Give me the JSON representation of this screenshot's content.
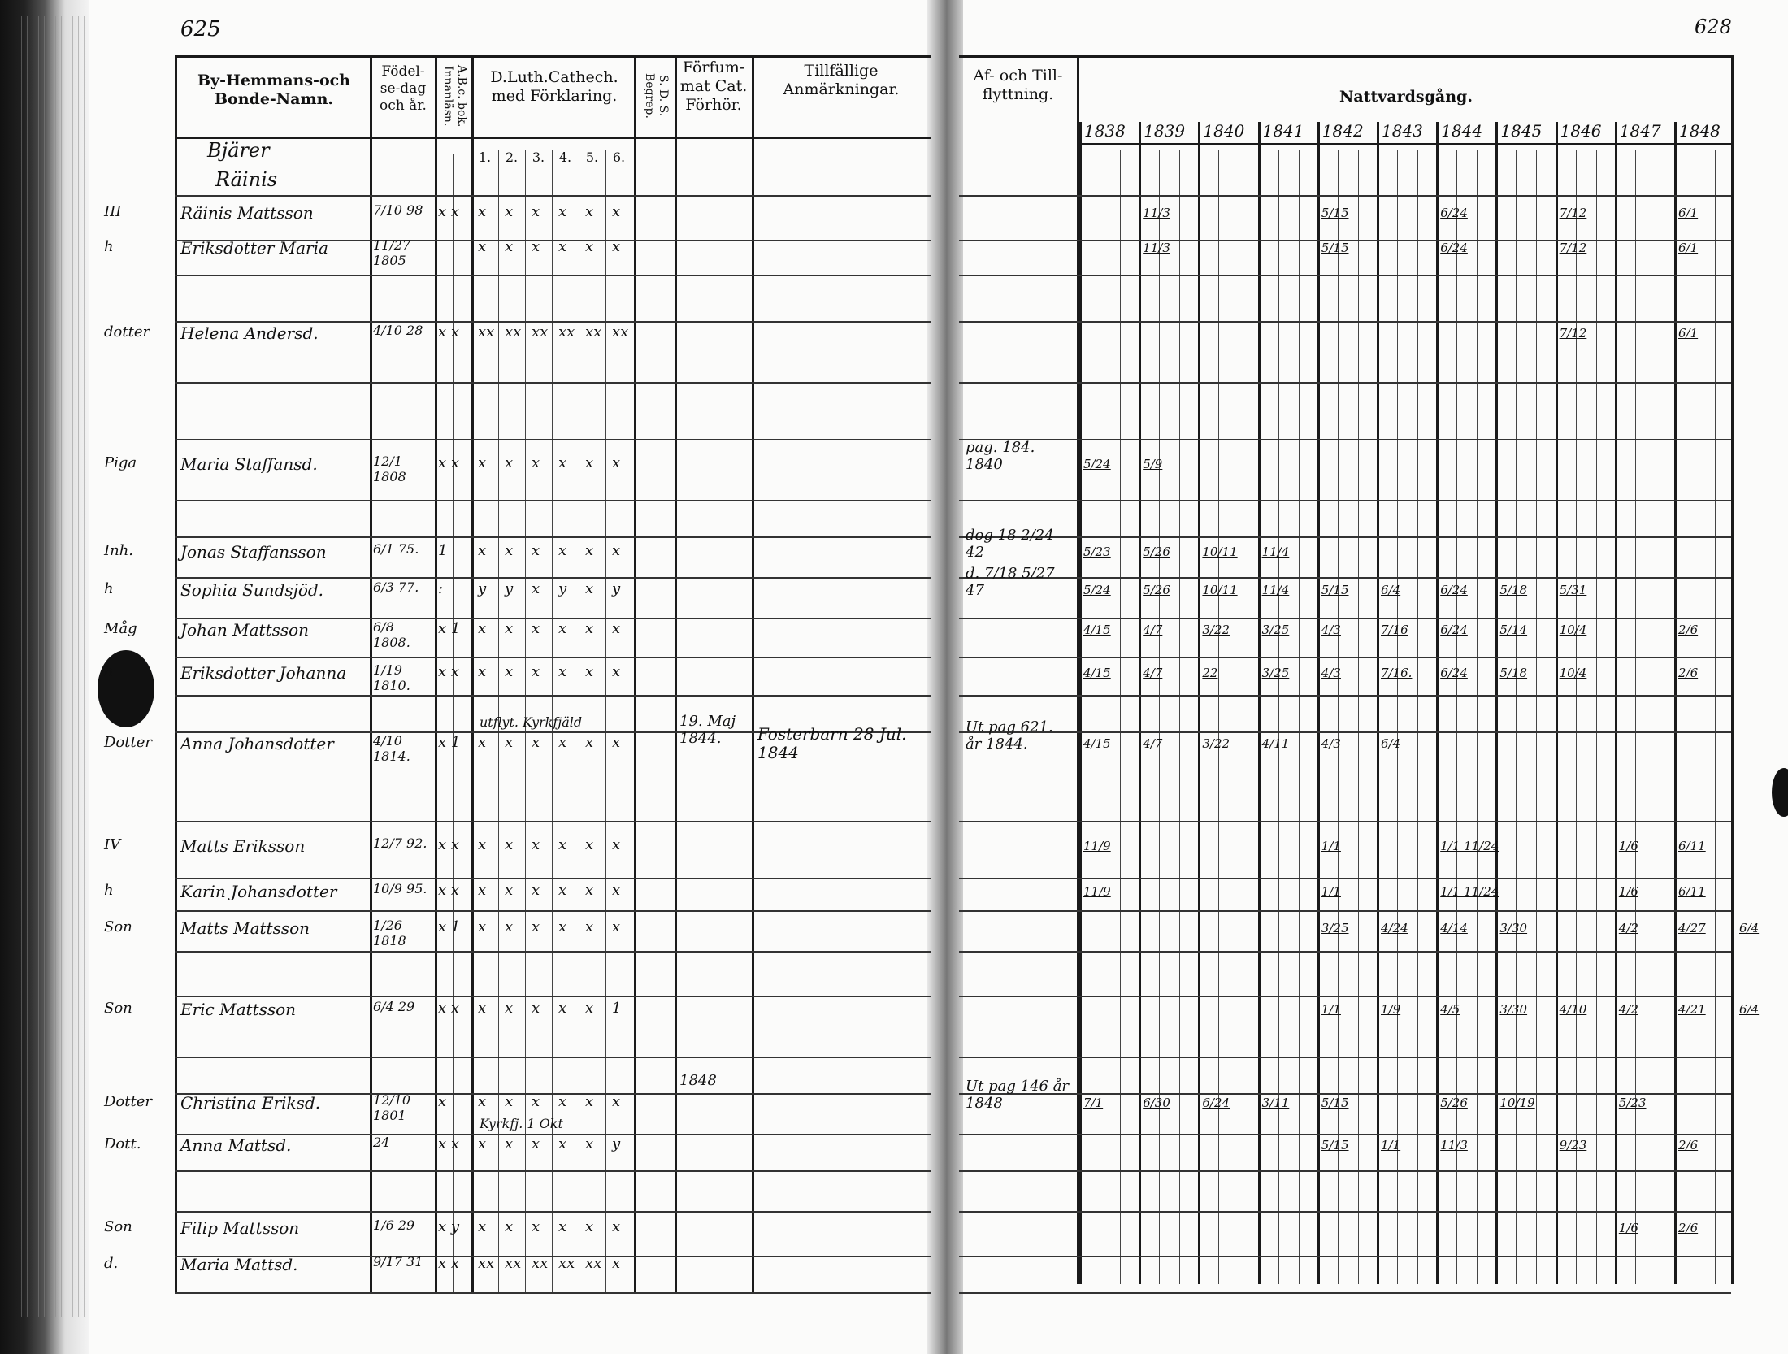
{
  "page_numbers": {
    "left": "625",
    "right": "628"
  },
  "headers": {
    "name": "By-Hemmans-och Bonde-Namn.",
    "birth": "Födel-se-dag och år.",
    "abc": "A.B.c. bok. Innanläsn.",
    "catechism": "D.Luth.Cathech. med Förklaring.",
    "catechism_parts": [
      "1.",
      "2.",
      "3.",
      "4.",
      "5.",
      "6."
    ],
    "sds": "S. D. S. Begrep.",
    "neglected": "Förfum-mat Cat. Förhör.",
    "remarks": "Tillfällige Anmärkningar.",
    "moving": "Af- och Till-flyttning.",
    "communion": "Nattvardsgång."
  },
  "years": [
    "1838",
    "1839",
    "1840",
    "1841",
    "1842",
    "1843",
    "1844",
    "1845",
    "1846",
    "1847",
    "1848"
  ],
  "village": [
    "Bjärer",
    "Räinis"
  ],
  "rows": [
    {
      "mark": "III",
      "name": "Räinis Mattsson",
      "birth": "7/10 98",
      "abc": "x x",
      "cat": [
        "x",
        "x",
        "x",
        "x",
        "x",
        "x"
      ],
      "communion": {
        "1839": "11/3",
        "1842": "5/15",
        "1844": "6/24",
        "1846": "7/12",
        "1848": "6/1"
      }
    },
    {
      "mark": "h",
      "name": "Eriksdotter Maria",
      "birth": "11/27 1805",
      "abc": "",
      "cat": [
        "x",
        "x",
        "x",
        "x",
        "x",
        "x"
      ],
      "communion": {
        "1839": "11/3",
        "1842": "5/15",
        "1844": "6/24",
        "1846": "7/12",
        "1848": "6/1"
      }
    },
    {
      "mark": "dotter",
      "name": "Helena Andersd.",
      "birth": "4/10 28",
      "abc": "x x",
      "cat": [
        "xx",
        "xx",
        "xx",
        "xx",
        "xx",
        "xx"
      ],
      "communion": {
        "1846": "7/12",
        "1848": "6/1"
      }
    },
    {
      "mark": "Piga",
      "name": "Maria Staffansd.",
      "birth": "12/1 1808",
      "abc": "x x",
      "cat": [
        "x",
        "x",
        "x",
        "x",
        "x",
        "x"
      ],
      "move": "pag. 184. 1840",
      "communion": {
        "1838": "5/24",
        "1839": "5/9"
      }
    },
    {
      "mark": "Inh.",
      "name": "Jonas Staffansson",
      "birth": "6/1 75.",
      "abc": "1",
      "cat": [
        "x",
        "x",
        "x",
        "x",
        "x",
        "x"
      ],
      "move": "dog 18 2/24 42",
      "communion": {
        "1838": "5/23",
        "1839": "5/26",
        "1840": "10/11",
        "1841": "11/4"
      }
    },
    {
      "mark": "h",
      "name": "Sophia Sundsjöd.",
      "birth": "6/3 77.",
      "abc": ":",
      "cat": [
        "y",
        "y",
        "x",
        "y",
        "x",
        "y"
      ],
      "move": "d. 7/18 5/27 47",
      "communion": {
        "1838": "5/24",
        "1839": "5/26",
        "1840": "10/11",
        "1841": "11/4",
        "1842": "5/15",
        "1843": "6/4",
        "1844": "6/24",
        "1845": "5/18",
        "1846": "5/31"
      }
    },
    {
      "mark": "Måg",
      "name": "Johan Mattsson",
      "birth": "6/8 1808.",
      "abc": "x 1",
      "cat": [
        "x",
        "x",
        "x",
        "x",
        "x",
        "x"
      ],
      "communion": {
        "1838": "4/15",
        "1839": "4/7",
        "1840": "3/22",
        "1841": "3/25",
        "1842": "4/3",
        "1843": "7/16",
        "1844": "6/24",
        "1845": "5/14",
        "1846": "10/4",
        "1848": "2/6"
      }
    },
    {
      "mark": "h",
      "name": "Eriksdotter Johanna",
      "birth": "1/19 1810.",
      "abc": "x x",
      "cat": [
        "x",
        "x",
        "x",
        "x",
        "x",
        "x"
      ],
      "communion": {
        "1838": "4/15",
        "1839": "4/7",
        "1840": "22",
        "1841": "3/25",
        "1842": "4/3",
        "1843": "7/16.",
        "1844": "6/24",
        "1845": "5/18",
        "1846": "10/4",
        "1848": "2/6"
      }
    },
    {
      "mark": "Dotter",
      "name": "Anna Johansdotter",
      "birth": "4/10 1814.",
      "abc": "x 1",
      "cat": [
        "x",
        "x",
        "x",
        "x",
        "x",
        "x"
      ],
      "cat_note": "utflyt. Kyrkfjäld",
      "neglected": "19. Maj 1844.",
      "remarks": "Fosterbarn 28 Jul. 1844",
      "move": "Ut pag 621. år 1844.",
      "communion": {
        "1838": "4/15",
        "1839": "4/7",
        "1840": "3/22",
        "1841": "4/11",
        "1842": "4/3",
        "1843": "6/4"
      }
    },
    {
      "mark": "IV",
      "name": "Matts Eriksson",
      "birth": "12/7 92.",
      "abc": "x x",
      "cat": [
        "x",
        "x",
        "x",
        "x",
        "x",
        "x"
      ],
      "communion": {
        "1838": "11/9",
        "1842": "1/1",
        "1844": "1/1 11/24",
        "1847": "1/6",
        "1848": "6/11"
      }
    },
    {
      "mark": "h",
      "name": "Karin Johansdotter",
      "birth": "10/9 95.",
      "abc": "x x",
      "cat": [
        "x",
        "x",
        "x",
        "x",
        "x",
        "x"
      ],
      "communion": {
        "1838": "11/9",
        "1842": "1/1",
        "1844": "1/1 11/24",
        "1847": "1/6",
        "1848": "6/11"
      }
    },
    {
      "mark": "Son",
      "name": "Matts Mattsson",
      "birth": "1/26 1818",
      "abc": "x 1",
      "cat": [
        "x",
        "x",
        "x",
        "x",
        "x",
        "x"
      ],
      "communion": {
        "1842": "3/25",
        "1843": "4/24",
        "1844": "4/14",
        "1845": "3/30",
        "1847": "4/2",
        "1848": "4/27",
        "extra": "6/4"
      }
    },
    {
      "mark": "Son",
      "name": "Eric Mattsson",
      "birth": "6/4 29",
      "abc": "x x",
      "cat": [
        "x",
        "x",
        "x",
        "x",
        "x",
        "1"
      ],
      "communion": {
        "1842": "1/1",
        "1843": "1/9",
        "1844": "4/5",
        "1845": "3/30",
        "1846": "4/10",
        "1847": "4/2",
        "1848": "4/21",
        "extra": "6/4"
      }
    },
    {
      "mark": "Dotter",
      "name": "Christina Eriksd.",
      "birth": "12/10 1801",
      "abc": "x",
      "cat": [
        "x",
        "x",
        "x",
        "x",
        "x",
        "x"
      ],
      "neglected": "1848",
      "move": "Ut pag 146 år 1848",
      "communion": {
        "1838": "7/1",
        "1839": "6/30",
        "1840": "6/24",
        "1841": "3/11",
        "1842": "5/15",
        "1844": "5/26",
        "1845": "10/19",
        "1847": "5/23"
      }
    },
    {
      "mark": "Dott.",
      "name": "Anna Mattsd.",
      "birth": "24",
      "abc": "x x",
      "cat": [
        "x",
        "x",
        "x",
        "x",
        "x",
        "y"
      ],
      "cat_note": "Kyrkfj. 1 Okt",
      "communion": {
        "1842": "5/15",
        "1843": "1/1",
        "1844": "11/3",
        "1846": "9/23",
        "1848": "2/6"
      }
    },
    {
      "mark": "Son",
      "name": "Filip Mattsson",
      "birth": "1/6 29",
      "abc": "x y",
      "cat": [
        "x",
        "x",
        "x",
        "x",
        "x",
        "x"
      ],
      "communion": {
        "1847": "1/6",
        "1848": "2/6"
      }
    },
    {
      "mark": "d.",
      "name": "Maria Mattsd.",
      "birth": "9/17 31",
      "abc": "x x",
      "cat": [
        "xx",
        "xx",
        "xx",
        "xx",
        "xx",
        "x"
      ],
      "communion": {}
    }
  ]
}
